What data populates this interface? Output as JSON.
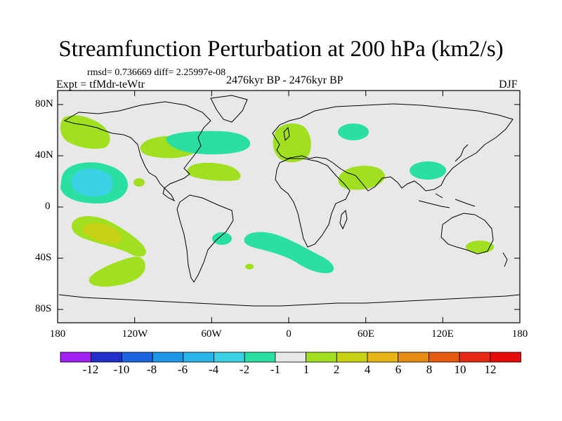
{
  "title": "Streamfunction Perturbation at 200 hPa (km2/s)",
  "stats_line": "rmsd= 0.736669 diff= 2.25997e-08",
  "experiment": "Expt = tfMdr-teWtr",
  "period": "2476kyr BP - 2476kyr BP",
  "season": "DJF",
  "lat_labels": [
    "80N",
    "40N",
    "0",
    "40S",
    "80S"
  ],
  "lon_labels": [
    "180",
    "120W",
    "60W",
    "0",
    "60E",
    "120E",
    "180"
  ],
  "colorbar_labels": [
    "-12",
    "-10",
    "-8",
    "-6",
    "-4",
    "-2",
    "-1",
    "1",
    "2",
    "4",
    "6",
    "8",
    "10",
    "12"
  ],
  "colorbar_colors": [
    "#a020f0",
    "#2030c8",
    "#1e64e0",
    "#1e96e6",
    "#28b4e6",
    "#3cd2e6",
    "#2ae0a0",
    "#e8e8e8",
    "#a0e020",
    "#c8d214",
    "#e6b414",
    "#e68c14",
    "#e65a14",
    "#e62814",
    "#e60a0a"
  ],
  "background_color": "#e8e8e8",
  "anomalies": [
    {
      "region": "NE Pacific / Alaska",
      "lon": -162,
      "lat": 57,
      "class": "1 to 2"
    },
    {
      "region": "Subtropical N Pacific",
      "lon": -150,
      "lat": 22,
      "class": "-4 to -2"
    },
    {
      "region": "Subtropical N Pacific halo",
      "lon": -150,
      "lat": 22,
      "class": "-2 to -1"
    },
    {
      "region": "E Pacific",
      "lon": -120,
      "lat": 22,
      "class": "1 to 2"
    },
    {
      "region": "N America",
      "lon": -90,
      "lat": 48,
      "class": "1 to 2"
    },
    {
      "region": "N Atlantic",
      "lon": -50,
      "lat": 47,
      "class": "-2 to -1"
    },
    {
      "region": "Subtropical Atlantic",
      "lon": -60,
      "lat": 25,
      "class": "1 to 2"
    },
    {
      "region": "Europe",
      "lon": 0,
      "lat": 50,
      "class": "1 to 2"
    },
    {
      "region": "Russia",
      "lon": 55,
      "lat": 52,
      "class": "-2 to -1"
    },
    {
      "region": "Middle East / India",
      "lon": 60,
      "lat": 25,
      "class": "1 to 2"
    },
    {
      "region": "E Asia",
      "lon": 103,
      "lat": 32,
      "class": "-2 to -1"
    },
    {
      "region": "S Pacific",
      "lon": -145,
      "lat": -22,
      "class": "2 to 4"
    },
    {
      "region": "S Pacific halo",
      "lon": -145,
      "lat": -22,
      "class": "1 to 2"
    },
    {
      "region": "SE Pacific",
      "lon": -145,
      "lat": -50,
      "class": "1 to 2"
    },
    {
      "region": "S America E coast",
      "lon": -50,
      "lat": -25,
      "class": "-2 to -1"
    },
    {
      "region": "S Atlantic",
      "lon": 0,
      "lat": -35,
      "class": "-2 to -1"
    },
    {
      "region": "S Atlantic small",
      "lon": -30,
      "lat": -47,
      "class": "1 to 2"
    },
    {
      "region": "Tasman Sea",
      "lon": 155,
      "lat": -32,
      "class": "1 to 2"
    }
  ]
}
